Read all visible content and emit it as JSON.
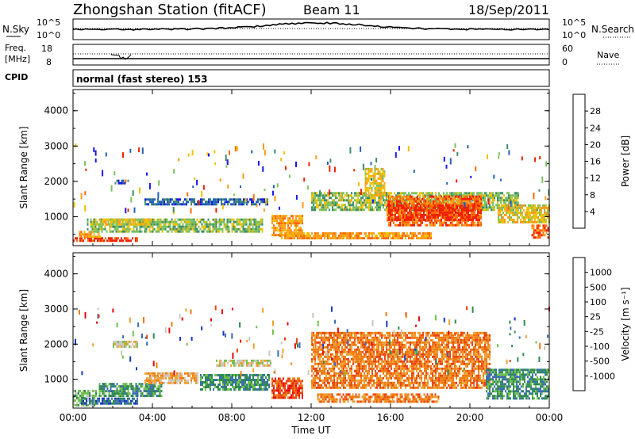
{
  "header": {
    "station": "Zhongshan Station (fitACF)",
    "beam": "Beam 11",
    "date": "18/Sep/2011"
  },
  "noise_panel": {
    "left_label": "N.Sky",
    "right_label": "N.Search",
    "left_ticks": [
      "10^5",
      "10^0"
    ],
    "right_ticks": [
      "10^5",
      "10^0"
    ]
  },
  "freq_panel": {
    "left_label_1": "Freq.",
    "left_label_2": "[MHz]",
    "cpid_label": "CPID",
    "right_label": "Nave",
    "left_ticks": [
      "18",
      "8"
    ],
    "right_ticks": [
      "60",
      "0"
    ]
  },
  "cpid_panel": {
    "text": "normal (fast stereo) 153"
  },
  "colors": {
    "power": [
      "#1818e8",
      "#2460b4",
      "#3c8c6c",
      "#7cc05c",
      "#f0c000",
      "#ff9a1a",
      "#ff6a00",
      "#f02000"
    ],
    "velocity": [
      "#1838c0",
      "#3c6cb4",
      "#2e8a52",
      "#70c04c",
      "#c8c8c0",
      "#f0a030",
      "#f07a10",
      "#e84410",
      "#e80808"
    ]
  },
  "chart_data": [
    {
      "type": "heatmap",
      "quantity": "Power",
      "ylabel": "Slant Range [km]",
      "xlabel": "",
      "ylim": [
        180,
        4600
      ],
      "yticks": [
        "4000",
        "3000",
        "2000",
        "1000"
      ],
      "x_ticks": [
        "00:00",
        "04:00",
        "08:00",
        "12:00",
        "16:00",
        "20:00",
        "00:00"
      ],
      "colorbar": {
        "label": "Power [dB]",
        "ticks": [
          "28",
          "24",
          "20",
          "16",
          "12",
          "8",
          "4"
        ]
      },
      "regions": [
        {
          "t": [
            0.0,
            3.3
          ],
          "r": [
            300,
            420
          ],
          "level": 7
        },
        {
          "t": [
            0.3,
            1.4
          ],
          "r": [
            420,
            600
          ],
          "level": 5
        },
        {
          "t": [
            0.7,
            9.6
          ],
          "r": [
            550,
            950
          ],
          "level": 3
        },
        {
          "t": [
            1.3,
            3.9
          ],
          "r": [
            720,
            950
          ],
          "level": 4
        },
        {
          "t": [
            3.6,
            9.8
          ],
          "r": [
            1300,
            1520
          ],
          "level": 1
        },
        {
          "t": [
            10.0,
            11.6
          ],
          "r": [
            430,
            1050
          ],
          "level": 5
        },
        {
          "t": [
            12.0,
            22.5
          ],
          "r": [
            1150,
            1700
          ],
          "level": 3
        },
        {
          "t": [
            14.7,
            15.7
          ],
          "r": [
            1580,
            2380
          ],
          "level": 4
        },
        {
          "t": [
            15.8,
            20.6
          ],
          "r": [
            720,
            1600
          ],
          "level": 6
        },
        {
          "t": [
            15.8,
            20.6
          ],
          "r": [
            900,
            1350
          ],
          "level": 7
        },
        {
          "t": [
            10.4,
            18.1
          ],
          "r": [
            350,
            560
          ],
          "level": 5
        },
        {
          "t": [
            21.4,
            24.0
          ],
          "r": [
            780,
            1350
          ],
          "level": 4
        },
        {
          "t": [
            23.1,
            24.0
          ],
          "r": [
            350,
            780
          ],
          "level": 6
        },
        {
          "t": [
            2.1,
            2.8
          ],
          "r": [
            1930,
            2050
          ],
          "level": 1
        }
      ]
    },
    {
      "type": "heatmap",
      "quantity": "Velocity",
      "ylabel": "Slant Range [km]",
      "xlabel": "Time UT",
      "ylim": [
        180,
        4600
      ],
      "yticks": [
        "4000",
        "3000",
        "2000",
        "1000"
      ],
      "x_ticks": [
        "00:00",
        "04:00",
        "08:00",
        "12:00",
        "16:00",
        "20:00",
        "00:00"
      ],
      "colorbar": {
        "label": "Velocity [m s⁻¹]",
        "ticks": [
          "1000",
          "500",
          "100",
          "25",
          "-25",
          "-100",
          "-500",
          "-1000"
        ]
      },
      "regions": [
        {
          "t": [
            0.0,
            1.2
          ],
          "r": [
            220,
            700
          ],
          "level": 3
        },
        {
          "t": [
            0.4,
            3.3
          ],
          "r": [
            280,
            480
          ],
          "level": 1
        },
        {
          "t": [
            1.3,
            4.5
          ],
          "r": [
            520,
            900
          ],
          "level": 2
        },
        {
          "t": [
            3.6,
            6.3
          ],
          "r": [
            850,
            1200
          ],
          "level": 5
        },
        {
          "t": [
            6.4,
            9.9
          ],
          "r": [
            650,
            1150
          ],
          "level": 2
        },
        {
          "t": [
            7.2,
            10.0
          ],
          "r": [
            1350,
            1560
          ],
          "level": 4
        },
        {
          "t": [
            10.0,
            11.6
          ],
          "r": [
            430,
            1050
          ],
          "level": 7
        },
        {
          "t": [
            12.0,
            21.0
          ],
          "r": [
            750,
            2350
          ],
          "level": 6
        },
        {
          "t": [
            12.3,
            18.5
          ],
          "r": [
            300,
            600
          ],
          "level": 6
        },
        {
          "t": [
            20.8,
            24.0
          ],
          "r": [
            450,
            1300
          ],
          "level": 2
        },
        {
          "t": [
            2.0,
            3.3
          ],
          "r": [
            1900,
            2100
          ],
          "level": 4
        }
      ]
    }
  ]
}
